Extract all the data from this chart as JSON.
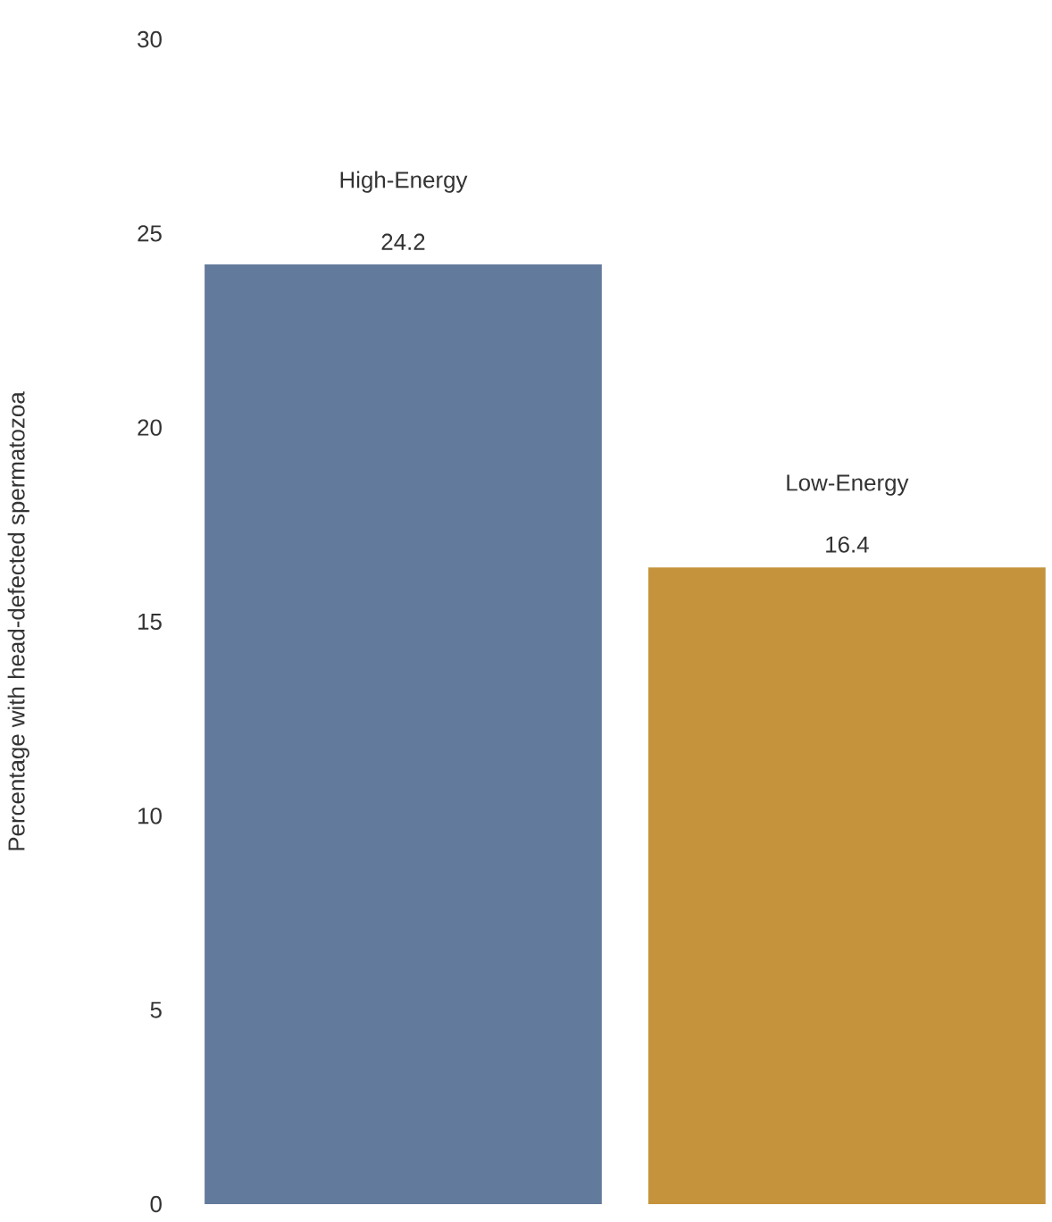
{
  "chart_data": {
    "type": "bar",
    "ylabel": "Percentage with head-defected spermatozoa",
    "categories": [
      "High-Energy",
      "Low-Energy"
    ],
    "values": [
      24.2,
      16.4
    ],
    "colors": [
      "#627a9b",
      "#c4933b"
    ],
    "ylim": [
      0,
      30
    ],
    "yticks": [
      0,
      5,
      10,
      15,
      20,
      25,
      30
    ],
    "data_labels": true
  }
}
